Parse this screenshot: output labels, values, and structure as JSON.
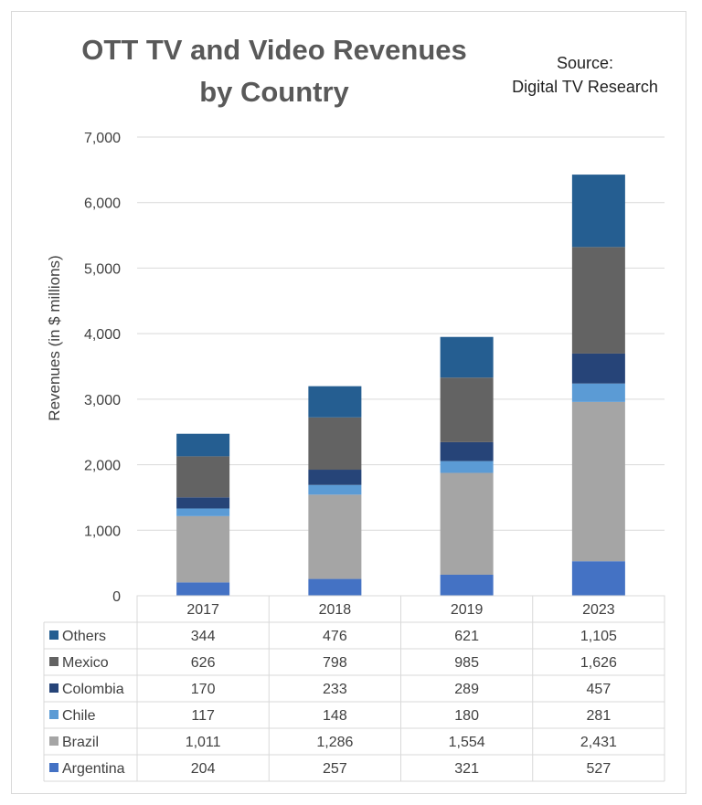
{
  "chart_data": {
    "type": "bar",
    "stacked": true,
    "title_line1": "OTT TV and Video Revenues",
    "title_line2": "by Country",
    "source_line1": "Source:",
    "source_line2": "Digital TV Research",
    "ylabel": "Revenues (in $ millions)",
    "xlabel": "",
    "ylim": [
      0,
      7000
    ],
    "yticks": [
      "0",
      "1,000",
      "2,000",
      "3,000",
      "4,000",
      "5,000",
      "6,000",
      "7,000"
    ],
    "grid": true,
    "legend": "data-table",
    "categories": [
      "2017",
      "2018",
      "2019",
      "2023"
    ],
    "series": [
      {
        "name": "Argentina",
        "color": "#4472C4",
        "values": [
          204,
          257,
          321,
          527
        ],
        "labels": [
          "204",
          "257",
          "321",
          "527"
        ]
      },
      {
        "name": "Brazil",
        "color": "#A5A5A5",
        "values": [
          1011,
          1286,
          1554,
          2431
        ],
        "labels": [
          "1,011",
          "1,286",
          "1,554",
          "2,431"
        ]
      },
      {
        "name": "Chile",
        "color": "#5B9BD5",
        "values": [
          117,
          148,
          180,
          281
        ],
        "labels": [
          "117",
          "148",
          "180",
          "281"
        ]
      },
      {
        "name": "Colombia",
        "color": "#264478",
        "values": [
          170,
          233,
          289,
          457
        ],
        "labels": [
          "170",
          "233",
          "289",
          "457"
        ]
      },
      {
        "name": "Mexico",
        "color": "#636363",
        "values": [
          626,
          798,
          985,
          1626
        ],
        "labels": [
          "626",
          "798",
          "985",
          "1,626"
        ]
      },
      {
        "name": "Others",
        "color": "#255E91",
        "values": [
          344,
          476,
          621,
          1105
        ],
        "labels": [
          "344",
          "476",
          "621",
          "1,105"
        ]
      }
    ]
  }
}
